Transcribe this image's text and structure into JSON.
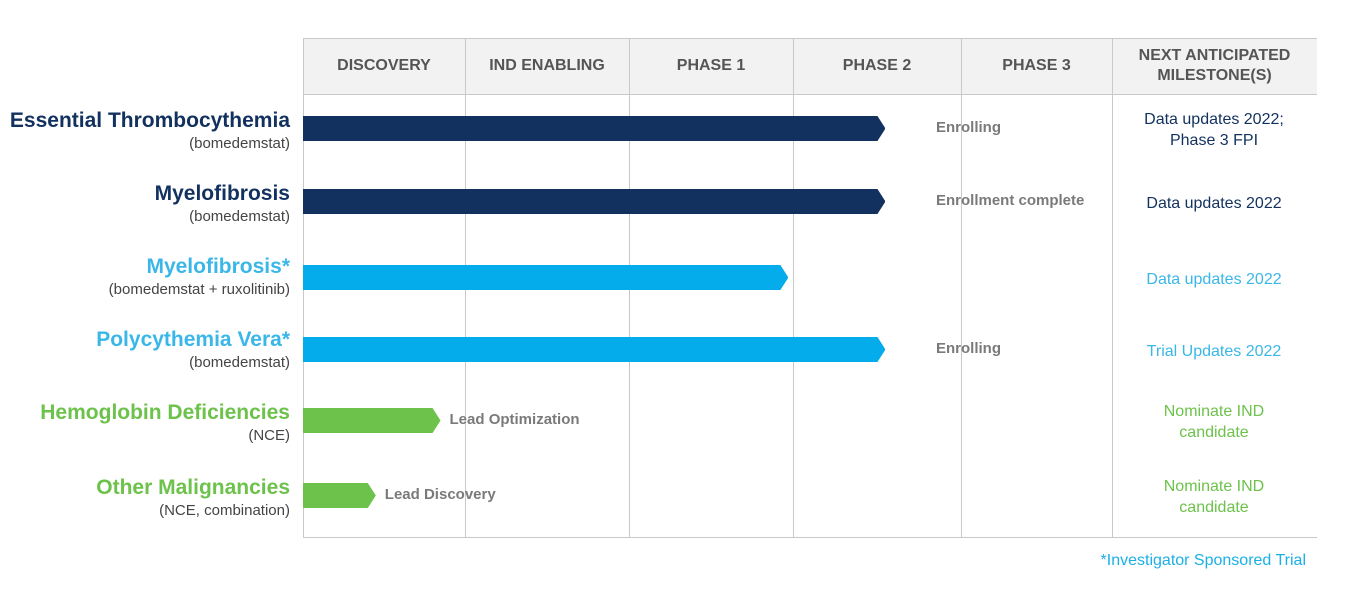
{
  "columns": [
    "DISCOVERY",
    "IND ENABLING",
    "PHASE 1",
    "PHASE 2",
    "PHASE 3",
    "NEXT ANTICIPATED MILESTONE(S)"
  ],
  "colors": {
    "navy": "#12315f",
    "cyan": "#05acec",
    "green": "#6cc24a",
    "navy_text": "#12315f",
    "cyan_text": "#3ab7e8",
    "green_text": "#6cc24a"
  },
  "rows": [
    {
      "name": "Essential Thrombocythemia",
      "sub": "(bomedemstat)",
      "color": "#12315f",
      "progress_fraction": 0.72,
      "status": "Enrolling",
      "milestone": "Data updates 2022;\nPhase 3 FPI"
    },
    {
      "name": "Myelofibrosis",
      "sub": "(bomedemstat)",
      "color": "#12315f",
      "progress_fraction": 0.72,
      "status": "Enrollment complete",
      "milestone": "Data updates 2022"
    },
    {
      "name": "Myelofibrosis*",
      "sub": "(bomedemstat + ruxolitinib)",
      "color": "#05acec",
      "progress_fraction": 0.6,
      "status": "",
      "milestone": "Data updates 2022"
    },
    {
      "name": "Polycythemia Vera*",
      "sub": "(bomedemstat)",
      "color": "#05acec",
      "progress_fraction": 0.72,
      "status": "Enrolling",
      "milestone": "Trial Updates 2022"
    },
    {
      "name": "Hemoglobin Deficiencies",
      "sub": "(NCE)",
      "color": "#6cc24a",
      "progress_fraction": 0.17,
      "status": "Lead Optimization",
      "milestone": "Nominate IND\ncandidate"
    },
    {
      "name": "Other Malignancies",
      "sub": "(NCE, combination)",
      "color": "#6cc24a",
      "progress_fraction": 0.09,
      "status": "Lead Discovery",
      "milestone": "Nominate IND\ncandidate"
    }
  ],
  "label_colors": [
    "#12315f",
    "#12315f",
    "#3ab7e8",
    "#3ab7e8",
    "#6cc24a",
    "#6cc24a"
  ],
  "footnote": "*Investigator Sponsored Trial"
}
